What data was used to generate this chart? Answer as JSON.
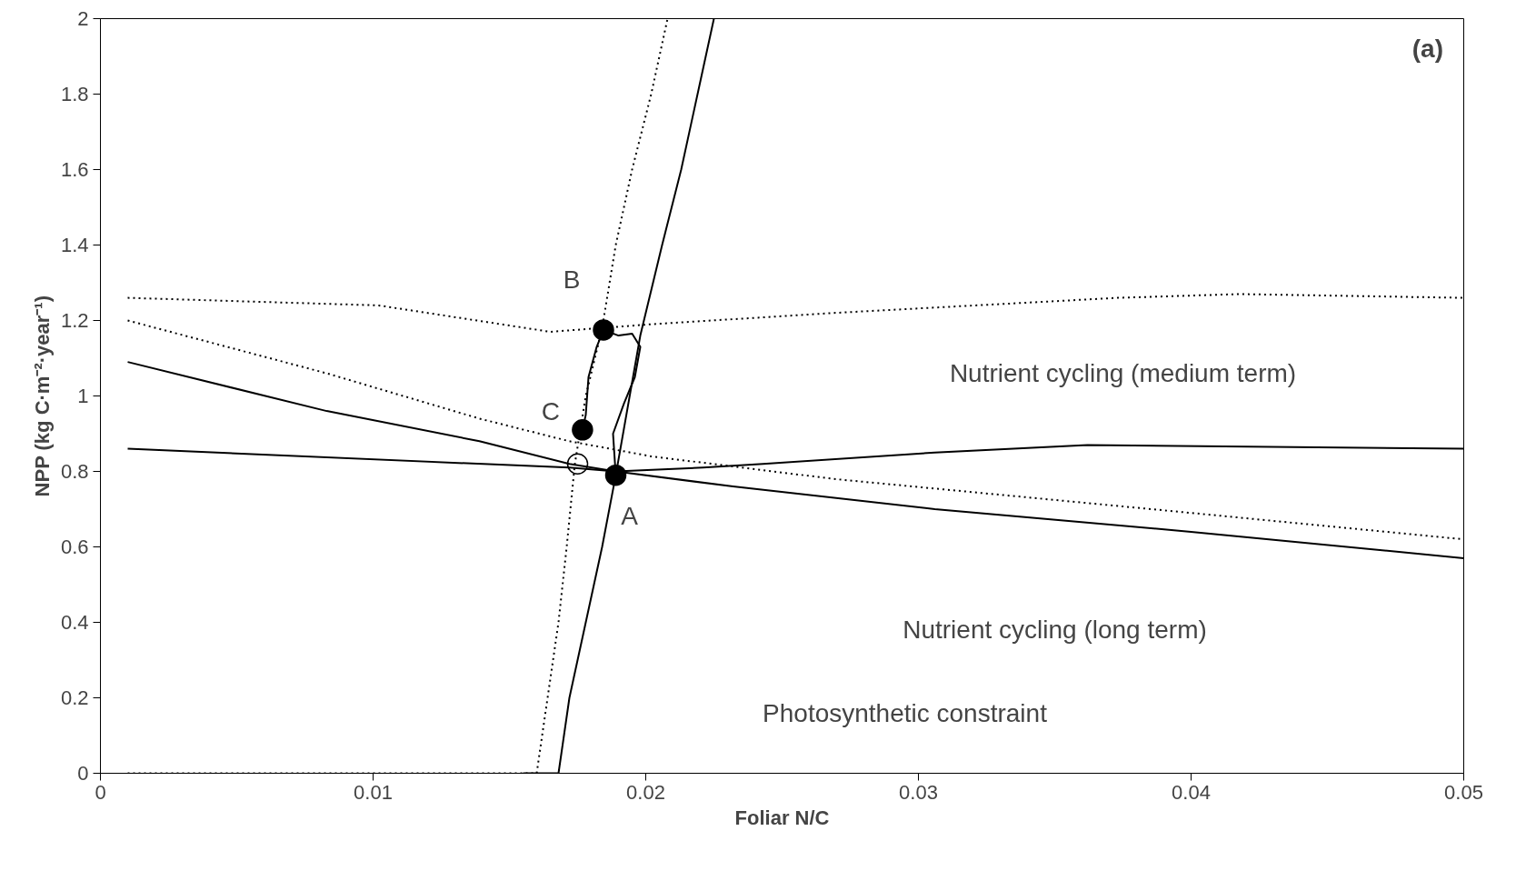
{
  "chart_data": {
    "type": "line",
    "xlabel": "Foliar N/C",
    "ylabel": "NPP (kg C·m⁻²·year⁻¹)",
    "xlim": [
      0,
      0.05
    ],
    "ylim": [
      0,
      2
    ],
    "xticks": [
      0,
      0.01,
      0.02,
      0.03,
      0.04,
      0.05
    ],
    "yticks": [
      0,
      0.2,
      0.4,
      0.6,
      0.8,
      1,
      1.2,
      1.4,
      1.6,
      1.8,
      2
    ],
    "grid": false,
    "series": [
      {
        "color": "#000000",
        "line_style": "solid",
        "x": [
          0.0155,
          0.0168,
          0.0172,
          0.0178,
          0.0184,
          0.0189,
          0.0198,
          0.0206,
          0.0213,
          0.0219,
          0.0225
        ],
        "values": [
          0,
          0,
          0.2,
          0.4,
          0.6,
          0.79,
          1.16,
          1.4,
          1.6,
          1.8,
          2.0
        ]
      },
      {
        "color": "#000000",
        "line_style": "dotted",
        "x": [
          0.001,
          0.016,
          0.0164,
          0.0168,
          0.0171,
          0.0174,
          0.0178,
          0.0184,
          0.0189,
          0.0195,
          0.0202,
          0.0208
        ],
        "values": [
          0,
          0,
          0.2,
          0.4,
          0.6,
          0.82,
          1.0,
          1.18,
          1.4,
          1.6,
          1.8,
          2.0
        ]
      },
      {
        "color": "#000000",
        "line_style": "dotted",
        "x": [
          0.001,
          0.0102,
          0.0165,
          0.0202,
          0.0269,
          0.0373,
          0.0418,
          0.05
        ],
        "values": [
          1.26,
          1.24,
          1.17,
          1.19,
          1.22,
          1.26,
          1.27,
          1.26
        ]
      },
      {
        "color": "#000000",
        "line_style": "solid",
        "x": [
          0.001,
          0.0172,
          0.0189,
          0.0221,
          0.0243,
          0.0306,
          0.0362,
          0.05
        ],
        "values": [
          0.86,
          0.81,
          0.8,
          0.81,
          0.82,
          0.85,
          0.87,
          0.86
        ]
      },
      {
        "color": "#000000",
        "line_style": "dotted",
        "x": [
          0.001,
          0.0083,
          0.0139,
          0.0172,
          0.0202,
          0.0269,
          0.04,
          0.05
        ],
        "values": [
          1.2,
          1.06,
          0.94,
          0.88,
          0.84,
          0.78,
          0.69,
          0.62
        ]
      },
      {
        "color": "#000000",
        "line_style": "solid",
        "x": [
          0.001,
          0.0083,
          0.0139,
          0.0172,
          0.0189,
          0.0232,
          0.0306,
          0.04,
          0.05
        ],
        "values": [
          1.09,
          0.96,
          0.88,
          0.82,
          0.8,
          0.76,
          0.7,
          0.64,
          0.57
        ]
      },
      {
        "color": "#000000",
        "line_style": "solid",
        "x": [
          0.0189,
          0.0188,
          0.0192,
          0.0196,
          0.0198,
          0.0195,
          0.019,
          0.01845,
          0.0182,
          0.0179,
          0.0178,
          0.01768
        ],
        "values": [
          0.79,
          0.9,
          0.98,
          1.05,
          1.13,
          1.165,
          1.16,
          1.175,
          1.13,
          1.05,
          0.95,
          0.91
        ]
      },
      {
        "type": "scatter",
        "marker": "circle",
        "color": "#000000",
        "x": [
          0.0189,
          0.01845,
          0.01768
        ],
        "values": [
          0.79,
          1.175,
          0.91
        ]
      },
      {
        "type": "scatter",
        "marker": "circle",
        "color": "#ffffff",
        "x": [
          0.0175
        ],
        "values": [
          0.82
        ]
      }
    ],
    "annotations": [
      "(a)",
      {
        "text": "B",
        "x": 0.01845,
        "y": 1.175
      },
      {
        "text": "C",
        "x": 0.01768,
        "y": 0.91
      },
      {
        "text": "A",
        "x": 0.0189,
        "y": 0.79
      },
      "Nutrient cycling (medium term)",
      "Nutrient cycling (long term)",
      "Photosynthetic constraint"
    ]
  }
}
